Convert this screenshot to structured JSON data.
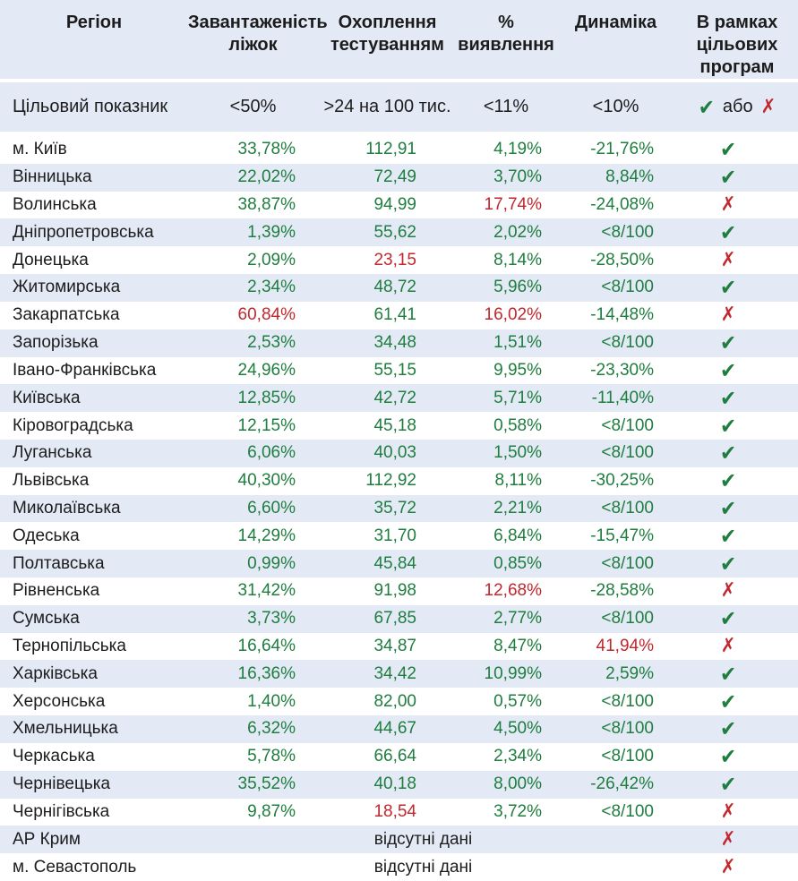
{
  "chart_data": {
    "type": "table",
    "columns": [
      {
        "label": "Регіон"
      },
      {
        "label": "Завантаженість\nліжок"
      },
      {
        "label": "Охоплення\nтестуванням"
      },
      {
        "label": "%\nвиявлення"
      },
      {
        "label": "Динаміка"
      },
      {
        "label": "В рамках\nцільових\nпрограм"
      }
    ],
    "target_row": {
      "label": "Цільовий показник",
      "beds": "<50%",
      "testing": ">24 на 100 тис.",
      "detection": "<11%",
      "dynamics": "<10%",
      "or_label": "або"
    },
    "nodata_label": "відсутні дані",
    "rows": [
      {
        "region": "м. Київ",
        "beds": {
          "v": "33,78%"
        },
        "testing": {
          "v": "112,91"
        },
        "detection": {
          "v": "4,19%"
        },
        "dynamics": {
          "v": "-21,76%"
        },
        "status": "pass"
      },
      {
        "region": "Вінницька",
        "beds": {
          "v": "22,02%"
        },
        "testing": {
          "v": "72,49"
        },
        "detection": {
          "v": "3,70%"
        },
        "dynamics": {
          "v": "8,84%"
        },
        "status": "pass"
      },
      {
        "region": "Волинська",
        "beds": {
          "v": "38,87%"
        },
        "testing": {
          "v": "94,99"
        },
        "detection": {
          "v": "17,74%",
          "red": true
        },
        "dynamics": {
          "v": "-24,08%"
        },
        "status": "fail"
      },
      {
        "region": "Дніпропетровська",
        "beds": {
          "v": "1,39%"
        },
        "testing": {
          "v": "55,62"
        },
        "detection": {
          "v": "2,02%"
        },
        "dynamics": {
          "v": "<8/100"
        },
        "status": "pass"
      },
      {
        "region": "Донецька",
        "beds": {
          "v": "2,09%"
        },
        "testing": {
          "v": "23,15",
          "red": true
        },
        "detection": {
          "v": "8,14%"
        },
        "dynamics": {
          "v": "-28,50%"
        },
        "status": "fail"
      },
      {
        "region": "Житомирська",
        "beds": {
          "v": "2,34%"
        },
        "testing": {
          "v": "48,72"
        },
        "detection": {
          "v": "5,96%"
        },
        "dynamics": {
          "v": "<8/100"
        },
        "status": "pass"
      },
      {
        "region": "Закарпатська",
        "beds": {
          "v": "60,84%",
          "red": true
        },
        "testing": {
          "v": "61,41"
        },
        "detection": {
          "v": "16,02%",
          "red": true
        },
        "dynamics": {
          "v": "-14,48%"
        },
        "status": "fail"
      },
      {
        "region": "Запорізька",
        "beds": {
          "v": "2,53%"
        },
        "testing": {
          "v": "34,48"
        },
        "detection": {
          "v": "1,51%"
        },
        "dynamics": {
          "v": "<8/100"
        },
        "status": "pass"
      },
      {
        "region": "Івано-Франківська",
        "beds": {
          "v": "24,96%"
        },
        "testing": {
          "v": "55,15"
        },
        "detection": {
          "v": "9,95%"
        },
        "dynamics": {
          "v": "-23,30%"
        },
        "status": "pass"
      },
      {
        "region": "Київська",
        "beds": {
          "v": "12,85%"
        },
        "testing": {
          "v": "42,72"
        },
        "detection": {
          "v": "5,71%"
        },
        "dynamics": {
          "v": "-11,40%"
        },
        "status": "pass"
      },
      {
        "region": "Кіровоградська",
        "beds": {
          "v": "12,15%"
        },
        "testing": {
          "v": "45,18"
        },
        "detection": {
          "v": "0,58%"
        },
        "dynamics": {
          "v": "<8/100"
        },
        "status": "pass"
      },
      {
        "region": "Луганська",
        "beds": {
          "v": "6,06%"
        },
        "testing": {
          "v": "40,03"
        },
        "detection": {
          "v": "1,50%"
        },
        "dynamics": {
          "v": "<8/100"
        },
        "status": "pass"
      },
      {
        "region": "Львівська",
        "beds": {
          "v": "40,30%"
        },
        "testing": {
          "v": "112,92"
        },
        "detection": {
          "v": "8,11%"
        },
        "dynamics": {
          "v": "-30,25%"
        },
        "status": "pass"
      },
      {
        "region": "Миколаївська",
        "beds": {
          "v": "6,60%"
        },
        "testing": {
          "v": "35,72"
        },
        "detection": {
          "v": "2,21%"
        },
        "dynamics": {
          "v": "<8/100"
        },
        "status": "pass"
      },
      {
        "region": "Одеська",
        "beds": {
          "v": "14,29%"
        },
        "testing": {
          "v": "31,70"
        },
        "detection": {
          "v": "6,84%"
        },
        "dynamics": {
          "v": "-15,47%"
        },
        "status": "pass"
      },
      {
        "region": "Полтавська",
        "beds": {
          "v": "0,99%"
        },
        "testing": {
          "v": "45,84"
        },
        "detection": {
          "v": "0,85%"
        },
        "dynamics": {
          "v": "<8/100"
        },
        "status": "pass"
      },
      {
        "region": "Рівненська",
        "beds": {
          "v": "31,42%"
        },
        "testing": {
          "v": "91,98"
        },
        "detection": {
          "v": "12,68%",
          "red": true
        },
        "dynamics": {
          "v": "-28,58%"
        },
        "status": "fail"
      },
      {
        "region": "Сумська",
        "beds": {
          "v": "3,73%"
        },
        "testing": {
          "v": "67,85"
        },
        "detection": {
          "v": "2,77%"
        },
        "dynamics": {
          "v": "<8/100"
        },
        "status": "pass"
      },
      {
        "region": "Тернопільська",
        "beds": {
          "v": "16,64%"
        },
        "testing": {
          "v": "34,87"
        },
        "detection": {
          "v": "8,47%"
        },
        "dynamics": {
          "v": "41,94%",
          "red": true
        },
        "status": "fail"
      },
      {
        "region": "Харківська",
        "beds": {
          "v": "16,36%"
        },
        "testing": {
          "v": "34,42"
        },
        "detection": {
          "v": "10,99%"
        },
        "dynamics": {
          "v": "2,59%"
        },
        "status": "pass"
      },
      {
        "region": "Херсонська",
        "beds": {
          "v": "1,40%"
        },
        "testing": {
          "v": "82,00"
        },
        "detection": {
          "v": "0,57%"
        },
        "dynamics": {
          "v": "<8/100"
        },
        "status": "pass"
      },
      {
        "region": "Хмельницька",
        "beds": {
          "v": "6,32%"
        },
        "testing": {
          "v": "44,67"
        },
        "detection": {
          "v": "4,50%"
        },
        "dynamics": {
          "v": "<8/100"
        },
        "status": "pass"
      },
      {
        "region": "Черкаська",
        "beds": {
          "v": "5,78%"
        },
        "testing": {
          "v": "66,64"
        },
        "detection": {
          "v": "2,34%"
        },
        "dynamics": {
          "v": "<8/100"
        },
        "status": "pass"
      },
      {
        "region": "Чернівецька",
        "beds": {
          "v": "35,52%"
        },
        "testing": {
          "v": "40,18"
        },
        "detection": {
          "v": "8,00%"
        },
        "dynamics": {
          "v": "-26,42%"
        },
        "status": "pass"
      },
      {
        "region": "Чернігівська",
        "beds": {
          "v": "9,87%"
        },
        "testing": {
          "v": "18,54",
          "red": true
        },
        "detection": {
          "v": "3,72%"
        },
        "dynamics": {
          "v": "<8/100"
        },
        "status": "fail"
      },
      {
        "region": "АР Крим",
        "nodata": true,
        "status": "fail"
      },
      {
        "region": "м. Севастополь",
        "nodata": true,
        "status": "fail"
      }
    ]
  },
  "icons": {
    "pass": "✔",
    "fail": "✗"
  },
  "colors": {
    "ok": "#1f7d3f",
    "alert": "#c1272d",
    "band": "#e3eaf5"
  }
}
